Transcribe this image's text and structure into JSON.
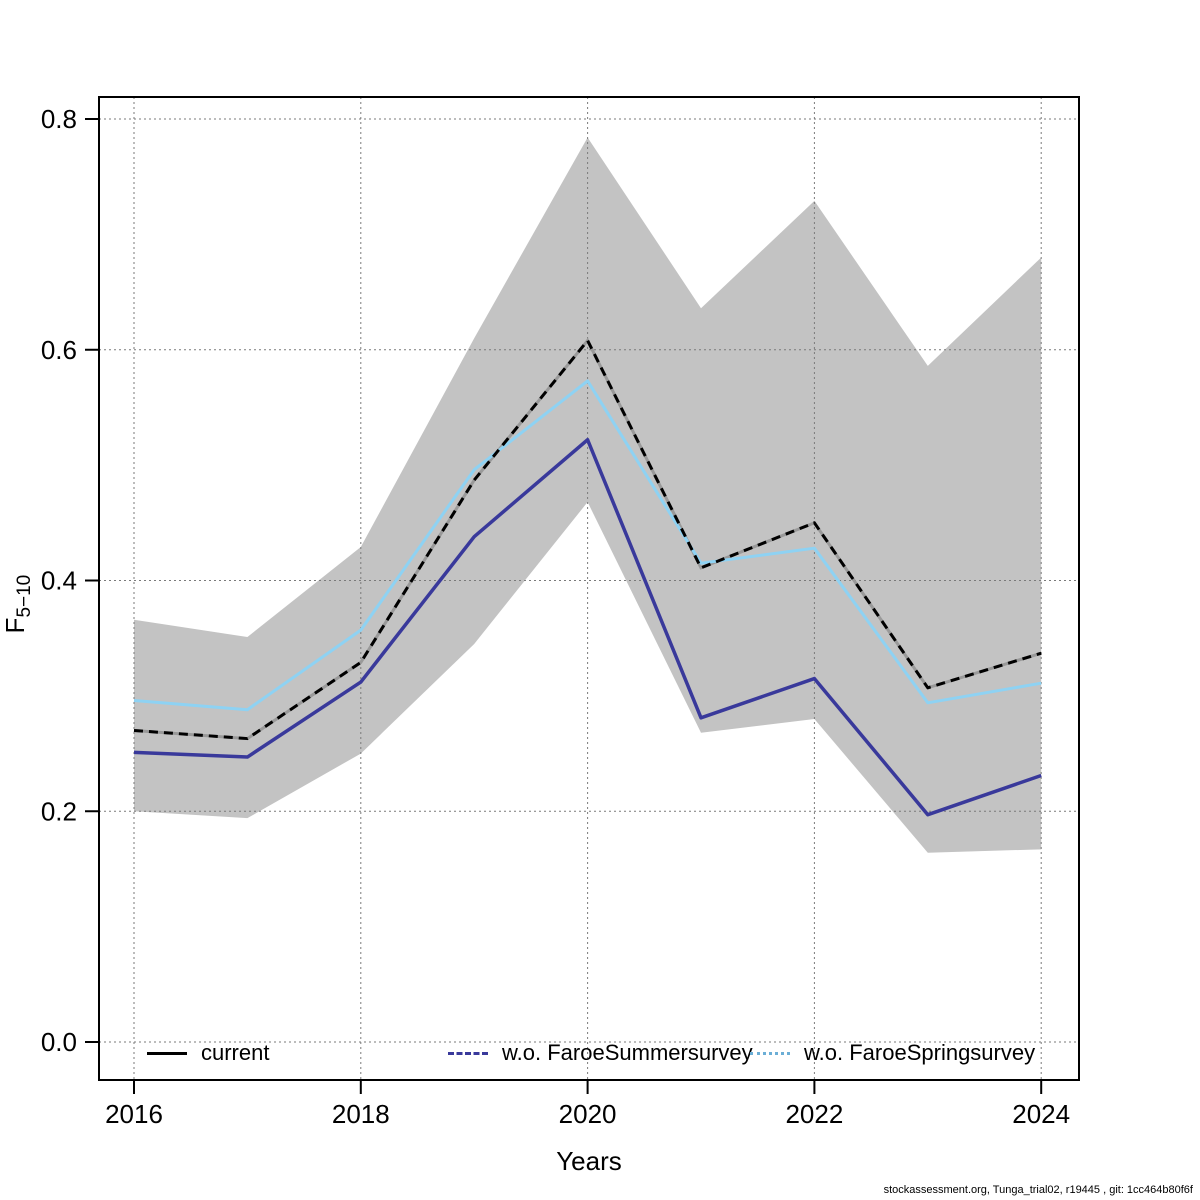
{
  "footer": {
    "text": "stockassessment.org, Tunga_trial02, r19445 , git: 1cc464b80f6f"
  },
  "chart_data": {
    "type": "line",
    "title": "",
    "xlabel": "Years",
    "ylabel": "F",
    "ylabel_sub": "5−10",
    "grid": "dotted",
    "legend_position": "bottom-inside",
    "x": [
      2016,
      2017,
      2018,
      2019,
      2020,
      2021,
      2022,
      2023,
      2024
    ],
    "xticks": [
      "2016",
      "2018",
      "2020",
      "2022",
      "2024"
    ],
    "yticks": [
      "0.0",
      "0.2",
      "0.4",
      "0.6",
      "0.8"
    ],
    "xlim": [
      2015.7,
      2024.33
    ],
    "ylim": [
      -0.033,
      0.82
    ],
    "series": [
      {
        "name": "current",
        "color": "#000000",
        "line_style": "dashed",
        "values": [
          0.27,
          0.263,
          0.329,
          0.487,
          0.608,
          0.411,
          0.45,
          0.307,
          0.337
        ]
      },
      {
        "name": "w.o. FaroeSummersurvey",
        "color": "#39399b",
        "line_style": "solid",
        "values": [
          0.251,
          0.247,
          0.312,
          0.438,
          0.522,
          0.281,
          0.315,
          0.197,
          0.231
        ]
      },
      {
        "name": "w.o. FaroeSpringsurvey",
        "color": "#8ed2f3",
        "line_style": "solid",
        "values": [
          0.296,
          0.288,
          0.357,
          0.496,
          0.573,
          0.415,
          0.428,
          0.294,
          0.311
        ]
      }
    ],
    "band": {
      "series": "current",
      "color": "#c3c3c3",
      "lower": [
        0.2,
        0.194,
        0.25,
        0.345,
        0.468,
        0.268,
        0.28,
        0.164,
        0.167
      ],
      "upper": [
        0.366,
        0.351,
        0.429,
        0.61,
        0.784,
        0.636,
        0.729,
        0.586,
        0.68
      ]
    },
    "legend": {
      "items": [
        {
          "label": "current"
        },
        {
          "label": "w.o. FaroeSummersurvey"
        },
        {
          "label": "w.o. FaroeSpringsurvey"
        }
      ]
    },
    "colors": {
      "grid": "#7a7a7a",
      "box": "#000000",
      "current_underlay": "#999999"
    }
  }
}
